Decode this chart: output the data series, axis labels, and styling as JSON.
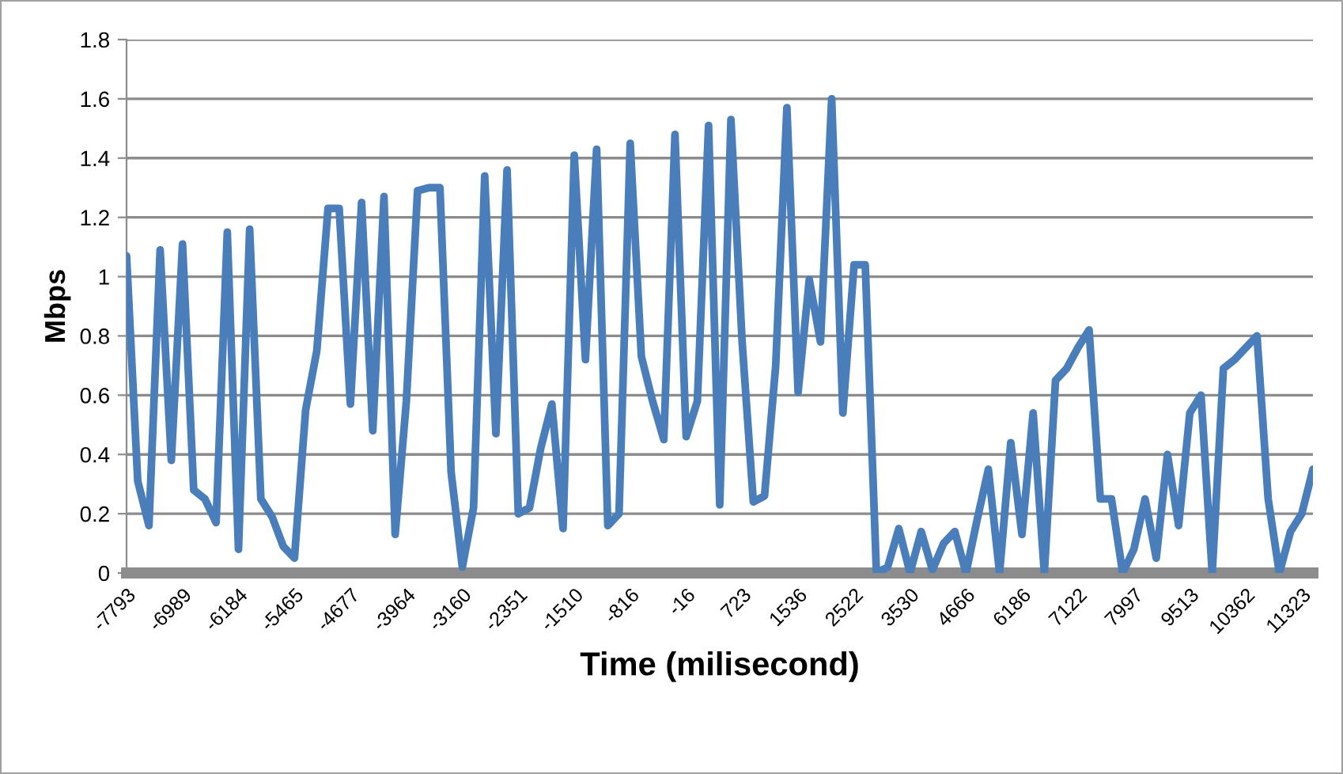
{
  "chart_data": {
    "type": "line",
    "xlabel": "Time (milisecond)",
    "ylabel": "Mbps",
    "categories": [
      "-7793",
      null,
      null,
      null,
      null,
      "-6989",
      null,
      null,
      null,
      null,
      "-6184",
      null,
      null,
      null,
      null,
      "-5465",
      null,
      null,
      null,
      null,
      "-4677",
      null,
      null,
      null,
      null,
      "-3964",
      null,
      null,
      null,
      null,
      "-3160",
      null,
      null,
      null,
      null,
      "-2351",
      null,
      null,
      null,
      null,
      "-1510",
      null,
      null,
      null,
      null,
      "-816",
      null,
      null,
      null,
      null,
      "-16",
      null,
      null,
      null,
      null,
      "723",
      null,
      null,
      null,
      null,
      "1536",
      null,
      null,
      null,
      null,
      "2522",
      null,
      null,
      null,
      null,
      "3530",
      null,
      null,
      null,
      null,
      "4666",
      null,
      null,
      null,
      null,
      "6186",
      null,
      null,
      null,
      null,
      "7122",
      null,
      null,
      null,
      null,
      "7997",
      null,
      null,
      null,
      null,
      "9513",
      null,
      null,
      null,
      null,
      "10362",
      null,
      null,
      null,
      null,
      "11323",
      null
    ],
    "series": [
      {
        "color": "#4a7ebb",
        "values": [
          1.07,
          0.31,
          0.16,
          1.09,
          0.38,
          1.11,
          0.28,
          0.25,
          0.17,
          1.15,
          0.08,
          1.16,
          0.25,
          0.19,
          0.09,
          0.05,
          0.55,
          0.75,
          1.23,
          1.23,
          0.57,
          1.25,
          0.48,
          1.27,
          0.13,
          0.58,
          1.29,
          1.3,
          1.3,
          0.34,
          0.02,
          0.22,
          1.34,
          0.47,
          1.36,
          0.2,
          0.22,
          0.42,
          0.57,
          0.15,
          1.41,
          0.72,
          1.43,
          0.16,
          0.2,
          1.45,
          0.73,
          0.58,
          0.45,
          1.48,
          0.46,
          0.58,
          1.51,
          0.23,
          1.53,
          0.78,
          0.24,
          0.26,
          0.7,
          1.57,
          0.61,
          0.99,
          0.78,
          1.6,
          0.54,
          1.04,
          1.04,
          0.0,
          0.02,
          0.15,
          0.0,
          0.14,
          0.01,
          0.1,
          0.14,
          0.0,
          0.18,
          0.35,
          0.0,
          0.44,
          0.13,
          0.54,
          0.0,
          0.65,
          0.69,
          0.76,
          0.82,
          0.25,
          0.25,
          0.0,
          0.08,
          0.25,
          0.05,
          0.4,
          0.16,
          0.54,
          0.6,
          0.0,
          0.69,
          0.72,
          0.76,
          0.8,
          0.25,
          0.0,
          0.14,
          0.2,
          0.35
        ]
      }
    ],
    "ylim": [
      0,
      1.8
    ],
    "yticks": [
      0,
      0.2,
      0.4,
      0.6,
      0.8,
      1,
      1.2,
      1.4,
      1.6,
      1.8
    ],
    "grid": "y",
    "marker": "none",
    "line_style": "solid"
  }
}
